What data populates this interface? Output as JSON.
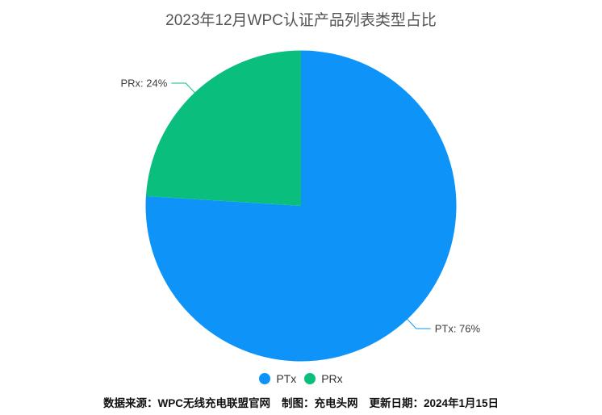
{
  "title": "2023年12月WPC认证产品列表类型占比",
  "chart_data": {
    "type": "pie",
    "title": "2023年12月WPC认证产品列表类型占比",
    "start_angle": "12-o-clock-clockwise",
    "legend_position": "bottom",
    "grid": false,
    "slices": [
      {
        "name": "PTx",
        "value": 76,
        "percent_label": "PTx: 76%",
        "color": "#0E94F8"
      },
      {
        "name": "PRx",
        "value": 24,
        "percent_label": "PRx: 24%",
        "color": "#0ABF7E"
      }
    ]
  },
  "legend": {
    "items": [
      {
        "label": "PTx",
        "color": "#0E94F8"
      },
      {
        "label": "PRx",
        "color": "#0ABF7E"
      }
    ]
  },
  "footer": {
    "source": "数据来源：WPC无线充电联盟官网",
    "credit": "制图：充电头网",
    "updated": "更新日期：2024年1月15日"
  }
}
